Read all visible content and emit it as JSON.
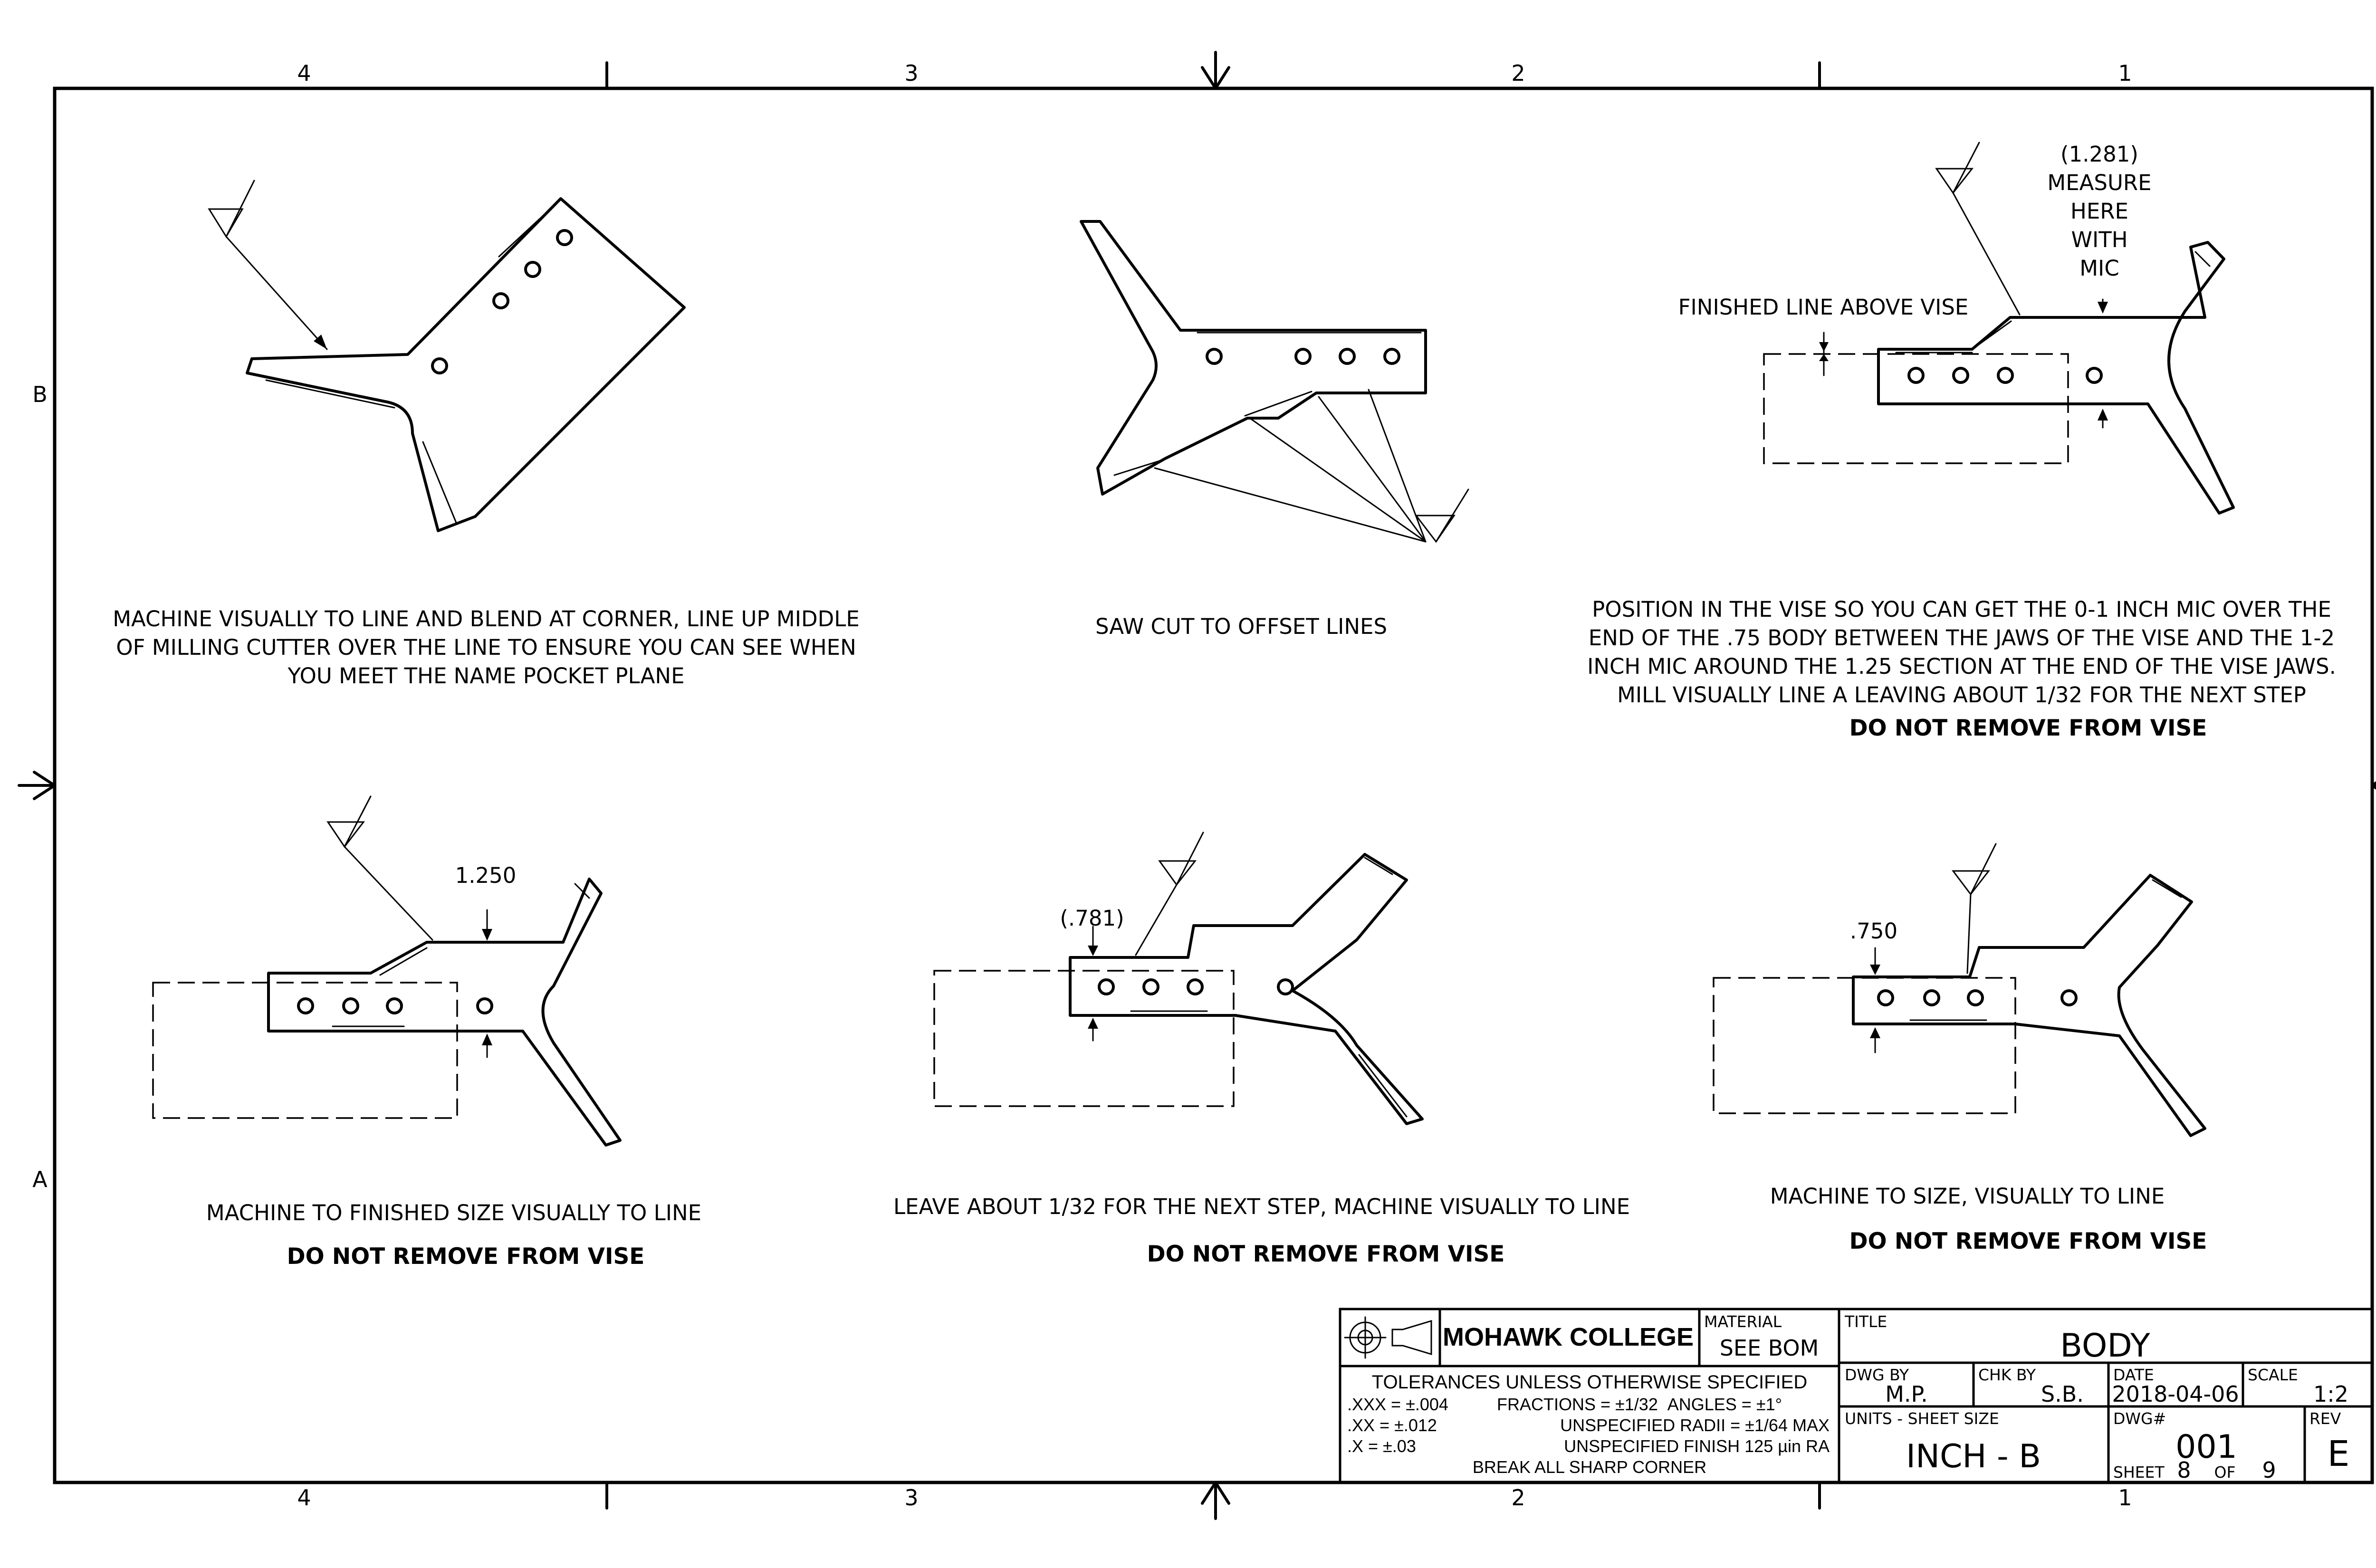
{
  "border": {
    "columns": [
      "4",
      "3",
      "2",
      "1"
    ],
    "rows": [
      "B",
      "A"
    ]
  },
  "views": [
    {
      "instruction": [
        "MACHINE VISUALLY TO LINE AND BLEND AT CORNER, LINE UP MIDDLE",
        "OF MILLING CUTTER OVER THE LINE TO ENSURE YOU CAN SEE WHEN",
        "YOU MEET THE NAME POCKET PLANE"
      ],
      "warning": ""
    },
    {
      "instruction": [
        "SAW CUT TO OFFSET LINES"
      ],
      "warning": ""
    },
    {
      "instruction": [
        "POSITION IN THE VISE SO YOU CAN GET THE 0-1 INCH MIC OVER THE",
        "END OF THE .75 BODY BETWEEN THE JAWS OF THE VISE AND THE 1-2",
        "INCH MIC AROUND THE 1.25 SECTION AT THE END OF THE VISE JAWS.",
        "MILL VISUALLY LINE A LEAVING ABOUT 1/32 FOR THE NEXT STEP"
      ],
      "warning": "DO NOT REMOVE FROM VISE",
      "label_finished_line": "FINISHED LINE ABOVE VISE",
      "callout": [
        "(1.281)",
        "MEASURE",
        "HERE",
        "WITH",
        "MIC"
      ]
    },
    {
      "instruction": [
        "MACHINE TO FINISHED SIZE VISUALLY TO LINE"
      ],
      "warning": "DO NOT REMOVE FROM VISE",
      "dimension": "1.250"
    },
    {
      "instruction": [
        "LEAVE ABOUT 1/32 FOR THE NEXT STEP, MACHINE VISUALLY TO LINE"
      ],
      "warning": "DO NOT REMOVE FROM VISE",
      "dimension": "(.781)"
    },
    {
      "instruction": [
        "MACHINE TO SIZE, VISUALLY TO LINE"
      ],
      "warning": "DO NOT REMOVE FROM VISE",
      "dimension": ".750"
    }
  ],
  "title_block": {
    "company": "MOHAWK COLLEGE",
    "material_label": "MATERIAL",
    "material": "SEE BOM",
    "title_label": "TITLE",
    "title": "BODY",
    "tolerances_heading": "TOLERANCES UNLESS OTHERWISE SPECIFIED",
    "tol_xxx": ".XXX = ±.004",
    "tol_xx": ".XX = ±.012",
    "tol_x": ".X = ±.03",
    "fractions": "FRACTIONS = ±1/32",
    "angles": "ANGLES = ±1°",
    "radii": "UNSPECIFIED RADII = ±1/64 MAX",
    "finish": "UNSPECIFIED FINISH 125 µin RA",
    "sharp_corner": "BREAK ALL SHARP CORNER",
    "dwg_by_label": "DWG BY",
    "dwg_by": "M.P.",
    "chk_by_label": "CHK BY",
    "chk_by": "S.B.",
    "date_label": "DATE",
    "date": "2018-04-06",
    "scale_label": "SCALE",
    "scale": "1:2",
    "units_label": "UNITS - SHEET SIZE",
    "units": "INCH - B",
    "dwg_no_label": "DWG#",
    "dwg_no": "001",
    "sheet_label": "SHEET",
    "sheet": "8",
    "of_label": "OF",
    "sheet_total": "9",
    "rev_label": "REV",
    "rev": "E"
  }
}
